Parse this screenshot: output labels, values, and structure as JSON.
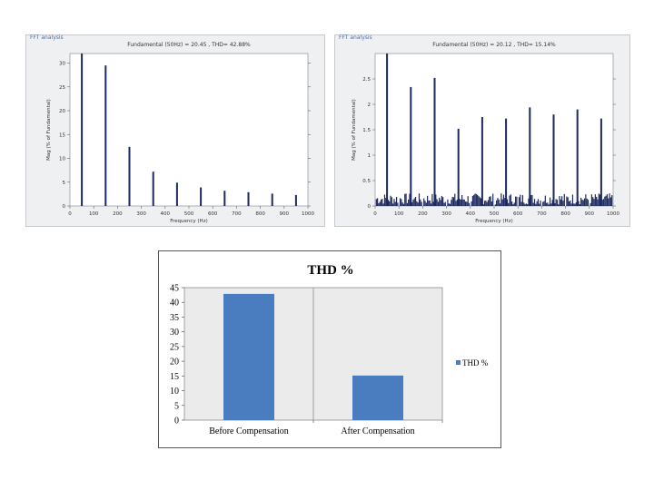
{
  "colors": {
    "spectrum_bar": "#1c2a5e",
    "thd_bar": "#4a7cc0",
    "plot_area": "#ebebeb"
  },
  "chart_data": [
    {
      "type": "bar",
      "title": "Fundamental (50Hz) = 20.45 , THD= 42.88%",
      "panel_tab": "FFT analysis",
      "xlabel": "Frequency (Hz)",
      "ylabel": "Mag (% of Fundamental)",
      "xlim": [
        0,
        1000
      ],
      "ylim": [
        0,
        32
      ],
      "x_ticks": [
        0,
        100,
        200,
        300,
        400,
        500,
        600,
        700,
        800,
        900,
        1000
      ],
      "y_ticks": [
        0,
        5,
        10,
        15,
        20,
        25,
        30
      ],
      "x": [
        50,
        150,
        250,
        350,
        450,
        550,
        650,
        750,
        850,
        950
      ],
      "values": [
        34,
        29.5,
        12.4,
        7.2,
        4.9,
        3.9,
        3.2,
        2.9,
        2.6,
        2.3
      ]
    },
    {
      "type": "bar",
      "title": "Fundamental (50Hz) = 20.12 , THD= 15.14%",
      "panel_tab": "FFT analysis",
      "xlabel": "Frequency (Hz)",
      "ylabel": "Mag (% of Fundamental)",
      "xlim": [
        0,
        1000
      ],
      "ylim": [
        0,
        3
      ],
      "x_ticks": [
        0,
        100,
        200,
        300,
        400,
        500,
        600,
        700,
        800,
        900,
        1000
      ],
      "y_ticks": [
        0,
        0.5,
        1,
        1.5,
        2,
        2.5
      ],
      "x": [
        50,
        150,
        250,
        350,
        450,
        550,
        650,
        750,
        850,
        950
      ],
      "values": [
        3.0,
        2.34,
        2.52,
        1.52,
        1.75,
        1.72,
        1.94,
        1.8,
        1.9,
        1.72
      ]
    },
    {
      "type": "bar",
      "title": "THD %",
      "categories": [
        "Before Compensation",
        "After Compensation"
      ],
      "series": [
        {
          "name": "THD %",
          "values": [
            42.88,
            15.14
          ]
        }
      ],
      "ylim": [
        0,
        45
      ],
      "y_ticks": [
        0,
        5,
        10,
        15,
        20,
        25,
        30,
        35,
        40,
        45
      ],
      "legend": "right"
    }
  ]
}
